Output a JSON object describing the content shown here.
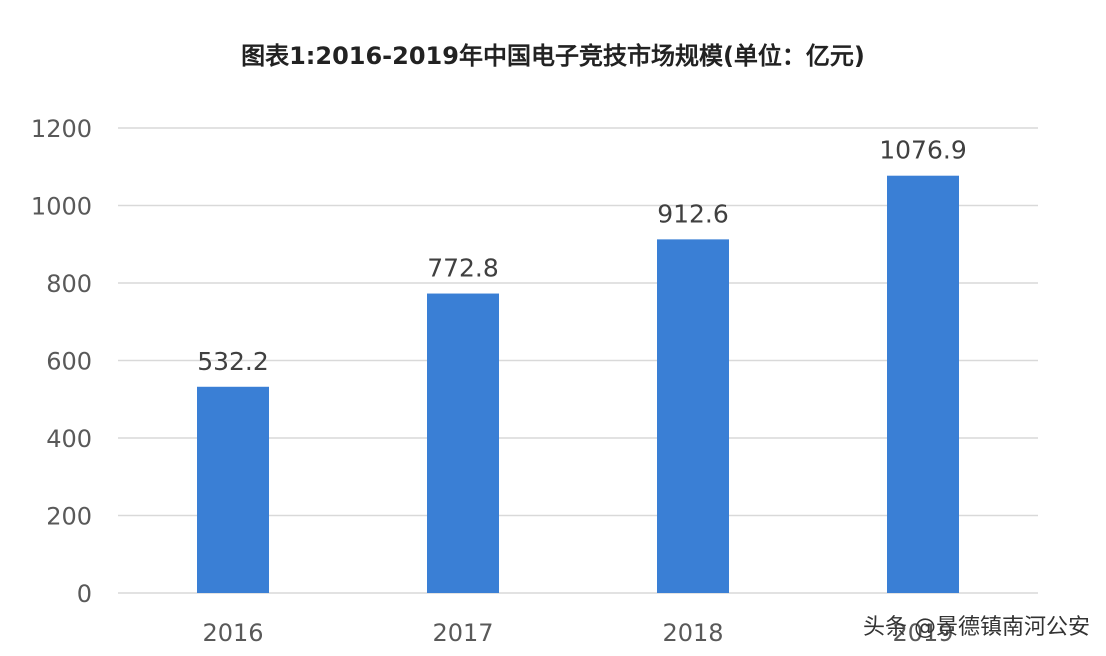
{
  "chart_data": {
    "type": "bar",
    "title": "图表1:2016-2019年中国电子竞技市场规模(单位：亿元)",
    "xlabel": "",
    "ylabel": "",
    "categories": [
      "2016",
      "2017",
      "2018",
      "2019"
    ],
    "values": [
      532.2,
      772.8,
      912.6,
      1076.9
    ],
    "data_labels": [
      "532.2",
      "772.8",
      "912.6",
      "1076.9"
    ],
    "y_ticks": [
      "0",
      "200",
      "400",
      "600",
      "800",
      "1000",
      "1200"
    ],
    "ylim": [
      0,
      1200
    ],
    "grid": true,
    "legend": "none",
    "bar_color": "#3A7FD5",
    "grid_color": "#D9D9D9"
  },
  "watermark": {
    "text": "头条 @景德镇南河公安"
  }
}
